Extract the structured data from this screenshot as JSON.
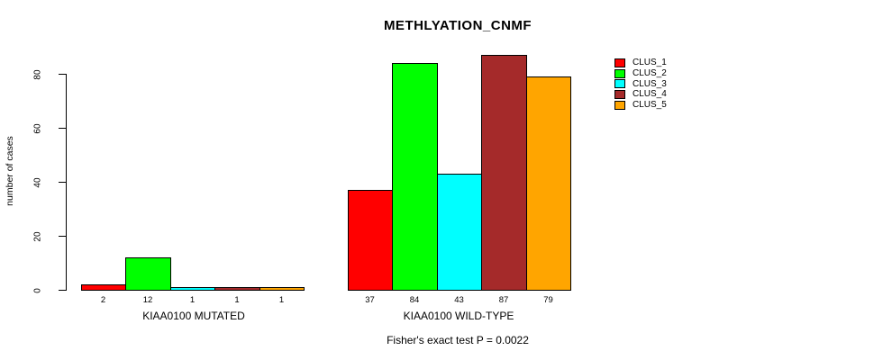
{
  "chart_data": {
    "type": "bar",
    "title": "METHLYATION_CNMF",
    "ylabel": "number of cases",
    "xlabel": "",
    "ylim": [
      0,
      80
    ],
    "yticks": [
      0,
      20,
      40,
      60,
      80
    ],
    "grid": false,
    "legend_position": "right-outside",
    "series_names": [
      "CLUS_1",
      "CLUS_2",
      "CLUS_3",
      "CLUS_4",
      "CLUS_5"
    ],
    "series_colors": [
      "#FF0000",
      "#00FF00",
      "#00FFFF",
      "#A52A2A",
      "#FFA500"
    ],
    "groups": [
      {
        "label": "KIAA0100 MUTATED",
        "values": [
          2,
          12,
          1,
          1,
          1
        ]
      },
      {
        "label": "KIAA0100 WILD-TYPE",
        "values": [
          37,
          84,
          43,
          87,
          79
        ]
      }
    ],
    "bar_value_labels_shown": true,
    "annotation": "Fisher's exact test P = 0.0022"
  }
}
